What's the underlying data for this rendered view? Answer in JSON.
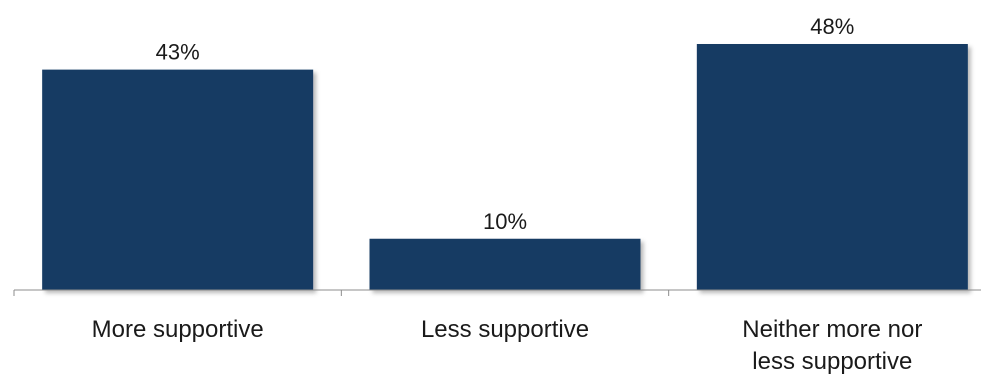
{
  "colors": {
    "bar": "#143a64",
    "axis": "#8c8c8c",
    "text": "#1a1a1a"
  },
  "chart_data": {
    "type": "bar",
    "title": "",
    "xlabel": "",
    "ylabel": "",
    "grid": false,
    "legend": "none",
    "ylim": [
      0,
      48
    ],
    "categories": [
      [
        "More supportive"
      ],
      [
        "Less supportive"
      ],
      [
        "Neither more nor",
        "less supportive"
      ]
    ],
    "values": [
      43,
      10,
      48
    ],
    "data_labels": [
      "43%",
      "10%",
      "48%"
    ]
  }
}
